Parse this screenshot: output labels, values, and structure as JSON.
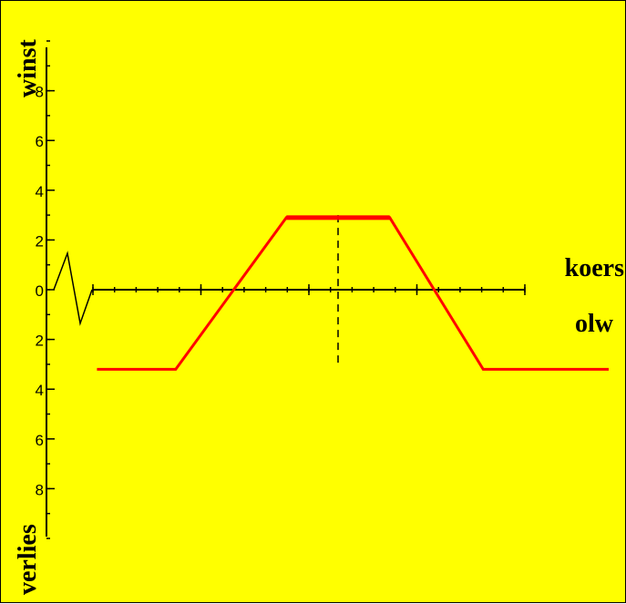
{
  "chart_data": {
    "type": "line",
    "x_axis_label": "koers",
    "x_axis_label_below": "olw",
    "y_axis_label_top": "winst",
    "y_axis_label_bottom": "verlies",
    "y_tick_labels": [
      "8",
      "6",
      "4",
      "2",
      "0",
      "2",
      "4",
      "6",
      "8"
    ],
    "y_tick_values": [
      8,
      6,
      4,
      2,
      0,
      -2,
      -4,
      -6,
      -8
    ],
    "ylim": [
      -10,
      10
    ],
    "xlim": [
      -10,
      11
    ],
    "x_minor_ticks": 20,
    "series": [
      {
        "color": "#ff0000",
        "points": [
          {
            "x": -9.8,
            "y": -3.2
          },
          {
            "x": -6.6,
            "y": -3.2
          },
          {
            "x": -2.1,
            "y": 2.9
          },
          {
            "x": 2.1,
            "y": 2.9
          },
          {
            "x": 5.9,
            "y": -3.2
          },
          {
            "x": 11.0,
            "y": -3.2
          }
        ]
      }
    ],
    "reference_line": {
      "x": 0,
      "y_from": -3.1,
      "y_to": 3.0,
      "style": "dashed"
    },
    "axis_break_symbol": true
  }
}
